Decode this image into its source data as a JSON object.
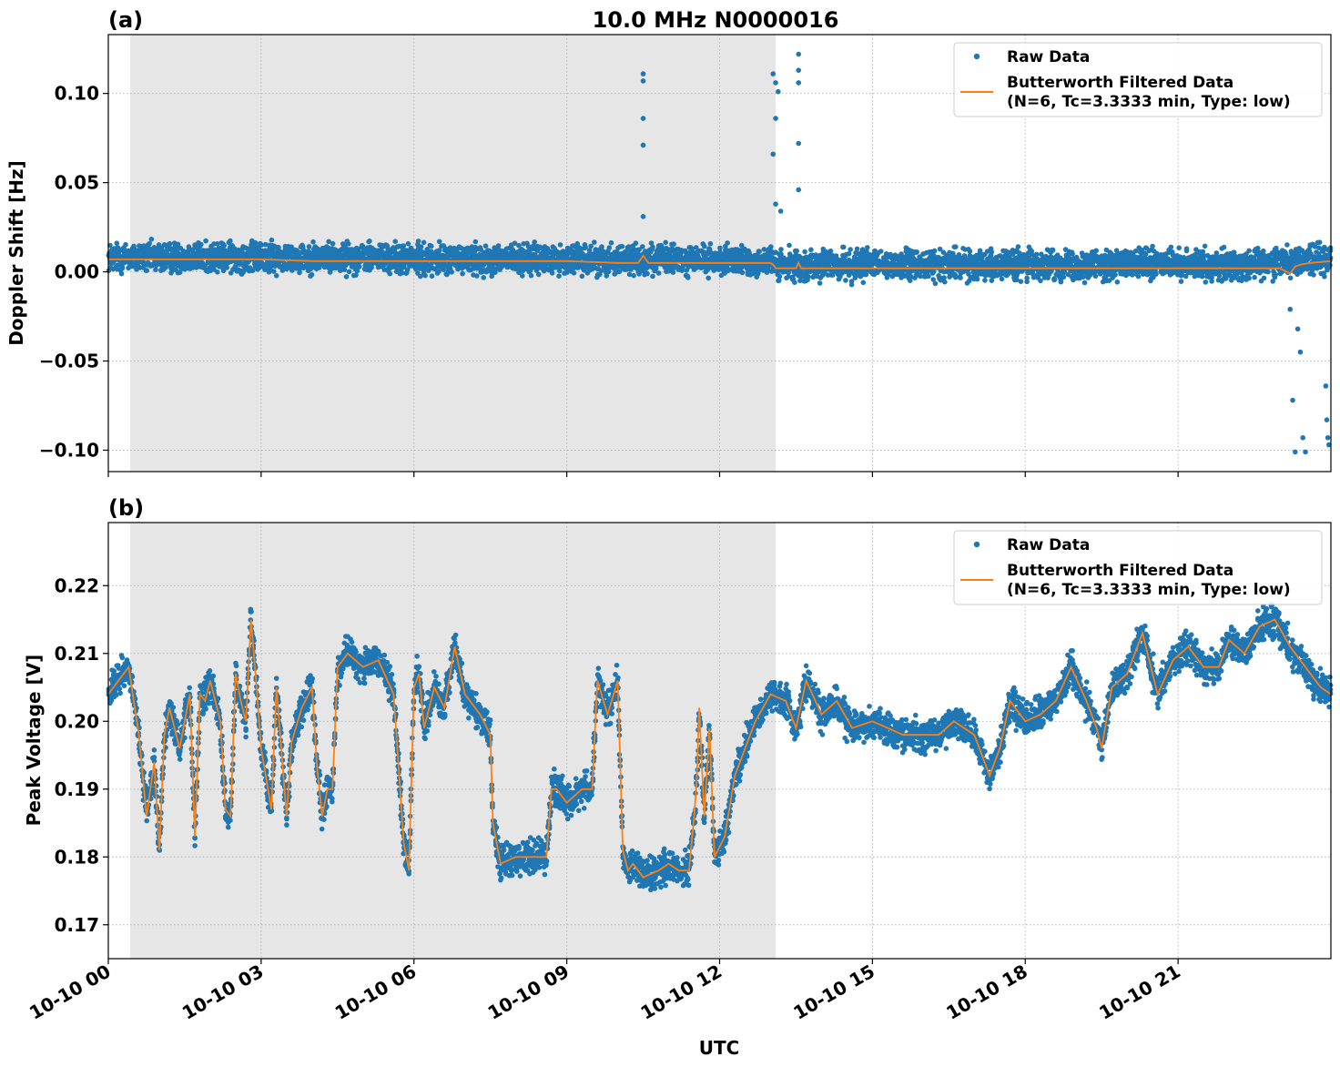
{
  "figure": {
    "title": "10.0 MHz N0000016",
    "xlabel": "UTC",
    "x_tick_labels": [
      "10-10 00",
      "10-10 03",
      "10-10 06",
      "10-10 09",
      "10-10 12",
      "10-10 15",
      "10-10 18",
      "10-10 21"
    ]
  },
  "colors": {
    "raw": "#1f77b4",
    "filtered": "#ff7f0e",
    "shade": "#e6e6e6",
    "grid": "#b0b0b0"
  },
  "legend": {
    "raw_label": "Raw Data",
    "filtered_label_line1": "Butterworth Filtered Data",
    "filtered_label_line2": "(N=6, Tc=3.3333 min, Type: low)"
  },
  "chart_data": [
    {
      "type": "scatter",
      "panel_label": "(a)",
      "title": "10.0 MHz N0000016",
      "ylabel": "Doppler Shift [Hz]",
      "xlabel": "UTC",
      "x_unit": "hours since 10-10 00:00 UTC",
      "xlim": [
        0,
        24
      ],
      "ylim": [
        -0.112,
        0.133
      ],
      "yticks": [
        0.1,
        0.05,
        0.0,
        -0.05,
        -0.1
      ],
      "ytick_labels": [
        "0.10",
        "0.05",
        "0.00",
        "−0.05",
        "−0.10"
      ],
      "shaded_span": [
        0.43,
        13.1
      ],
      "grid": true,
      "legend_position": "upper right",
      "series": [
        {
          "name": "Raw Data",
          "kind": "points",
          "color": "#1f77b4",
          "band": {
            "x": [
              0,
              1,
              2,
              3,
              4,
              5,
              6,
              7,
              8,
              9,
              10,
              11,
              12,
              13,
              13.1,
              14,
              15,
              16,
              17,
              18,
              19,
              20,
              21,
              22,
              23,
              24
            ],
            "center": [
              0.008,
              0.008,
              0.008,
              0.008,
              0.008,
              0.008,
              0.007,
              0.007,
              0.007,
              0.007,
              0.007,
              0.007,
              0.006,
              0.006,
              0.003,
              0.004,
              0.004,
              0.004,
              0.004,
              0.004,
              0.004,
              0.004,
              0.004,
              0.004,
              0.006,
              0.007
            ],
            "half_width": 0.012
          },
          "outliers": {
            "x": [
              10.5,
              10.5,
              10.5,
              10.5,
              10.5,
              13.05,
              13.1,
              13.15,
              13.1,
              13.05,
              13.1,
              13.2,
              13.55,
              13.55,
              13.55,
              13.55,
              13.55,
              23.2,
              23.25,
              23.3,
              23.35,
              23.4,
              23.45,
              23.5,
              23.9,
              23.92,
              23.94,
              23.96
            ],
            "y": [
              0.111,
              0.107,
              0.086,
              0.071,
              0.031,
              0.111,
              0.106,
              0.101,
              0.086,
              0.066,
              0.038,
              0.034,
              0.122,
              0.113,
              0.106,
              0.072,
              0.046,
              -0.021,
              -0.072,
              -0.101,
              -0.032,
              -0.045,
              -0.093,
              -0.101,
              -0.064,
              -0.083,
              -0.093,
              -0.097
            ]
          }
        },
        {
          "name": "Butterworth Filtered Data (N=6, Tc=3.3333 min, Type: low)",
          "kind": "line",
          "color": "#ff7f0e",
          "x": [
            0,
            1,
            2,
            3,
            4,
            5,
            6,
            7,
            8,
            9,
            10,
            10.4,
            10.5,
            10.6,
            11,
            12,
            13,
            13.05,
            13.1,
            13.2,
            13.5,
            13.55,
            13.6,
            14,
            15,
            16,
            17,
            18,
            19,
            20,
            21,
            22,
            23,
            23.2,
            23.3,
            23.4,
            23.6,
            24
          ],
          "y": [
            0.007,
            0.007,
            0.007,
            0.007,
            0.006,
            0.006,
            0.006,
            0.006,
            0.006,
            0.006,
            0.005,
            0.005,
            0.009,
            0.005,
            0.005,
            0.005,
            0.005,
            0.004,
            0.002,
            0.002,
            0.002,
            0.005,
            0.002,
            0.002,
            0.002,
            0.002,
            0.002,
            0.002,
            0.002,
            0.002,
            0.002,
            0.002,
            0.002,
            -0.001,
            0.003,
            0.004,
            0.005,
            0.006
          ]
        }
      ]
    },
    {
      "type": "scatter",
      "panel_label": "(b)",
      "ylabel": "Peak Voltage [V]",
      "xlabel": "UTC",
      "x_unit": "hours since 10-10 00:00 UTC",
      "xlim": [
        0,
        24
      ],
      "ylim": [
        0.165,
        0.2293
      ],
      "yticks": [
        0.22,
        0.21,
        0.2,
        0.19,
        0.18,
        0.17
      ],
      "ytick_labels": [
        "0.22",
        "0.21",
        "0.20",
        "0.19",
        "0.18",
        "0.17"
      ],
      "shaded_span": [
        0.43,
        13.1
      ],
      "grid": true,
      "legend_position": "upper right",
      "series": [
        {
          "name": "Raw Data",
          "kind": "points",
          "color": "#1f77b4",
          "band_half_width": 0.0035
        },
        {
          "name": "Butterworth Filtered Data (N=6, Tc=3.3333 min, Type: low)",
          "kind": "line",
          "color": "#ff7f0e",
          "x": [
            0,
            0.2,
            0.4,
            0.6,
            0.75,
            0.9,
            1.0,
            1.1,
            1.2,
            1.4,
            1.6,
            1.7,
            1.8,
            1.9,
            2.0,
            2.2,
            2.3,
            2.4,
            2.5,
            2.6,
            2.7,
            2.8,
            2.9,
            3.0,
            3.2,
            3.3,
            3.5,
            3.6,
            3.8,
            4.0,
            4.1,
            4.2,
            4.3,
            4.4,
            4.5,
            4.7,
            5.0,
            5.3,
            5.6,
            5.8,
            5.9,
            6.0,
            6.1,
            6.2,
            6.4,
            6.6,
            6.8,
            7.0,
            7.3,
            7.5,
            7.55,
            7.7,
            8.0,
            8.3,
            8.6,
            8.7,
            8.8,
            9.0,
            9.3,
            9.5,
            9.6,
            9.8,
            10.0,
            10.1,
            10.2,
            10.3,
            10.5,
            10.8,
            11.0,
            11.2,
            11.4,
            11.5,
            11.55,
            11.6,
            11.7,
            11.8,
            11.9,
            12.1,
            12.3,
            12.5,
            12.7,
            13.0,
            13.3,
            13.5,
            13.7,
            14.0,
            14.3,
            14.6,
            15.0,
            15.3,
            15.6,
            16.0,
            16.3,
            16.6,
            17.0,
            17.3,
            17.5,
            17.7,
            18.0,
            18.3,
            18.6,
            18.9,
            19.2,
            19.4,
            19.5,
            19.7,
            20.0,
            20.3,
            20.6,
            20.9,
            21.2,
            21.5,
            21.8,
            22.0,
            22.3,
            22.6,
            22.9,
            23.2,
            23.5,
            23.8,
            24.0
          ],
          "y": [
            0.204,
            0.206,
            0.208,
            0.198,
            0.186,
            0.194,
            0.181,
            0.198,
            0.202,
            0.196,
            0.204,
            0.183,
            0.204,
            0.203,
            0.206,
            0.2,
            0.187,
            0.186,
            0.207,
            0.203,
            0.2,
            0.215,
            0.206,
            0.196,
            0.187,
            0.205,
            0.186,
            0.197,
            0.202,
            0.205,
            0.193,
            0.186,
            0.19,
            0.19,
            0.208,
            0.21,
            0.208,
            0.209,
            0.204,
            0.182,
            0.178,
            0.205,
            0.207,
            0.199,
            0.205,
            0.202,
            0.211,
            0.204,
            0.201,
            0.198,
            0.185,
            0.179,
            0.18,
            0.18,
            0.18,
            0.19,
            0.19,
            0.188,
            0.19,
            0.19,
            0.206,
            0.201,
            0.206,
            0.181,
            0.178,
            0.179,
            0.177,
            0.178,
            0.179,
            0.178,
            0.178,
            0.186,
            0.191,
            0.202,
            0.186,
            0.199,
            0.18,
            0.183,
            0.192,
            0.196,
            0.2,
            0.204,
            0.203,
            0.199,
            0.206,
            0.201,
            0.203,
            0.199,
            0.2,
            0.199,
            0.198,
            0.198,
            0.198,
            0.2,
            0.198,
            0.192,
            0.196,
            0.203,
            0.2,
            0.201,
            0.203,
            0.208,
            0.203,
            0.199,
            0.196,
            0.205,
            0.207,
            0.213,
            0.204,
            0.209,
            0.211,
            0.208,
            0.208,
            0.212,
            0.21,
            0.214,
            0.215,
            0.211,
            0.208,
            0.205,
            0.204
          ]
        }
      ]
    }
  ]
}
